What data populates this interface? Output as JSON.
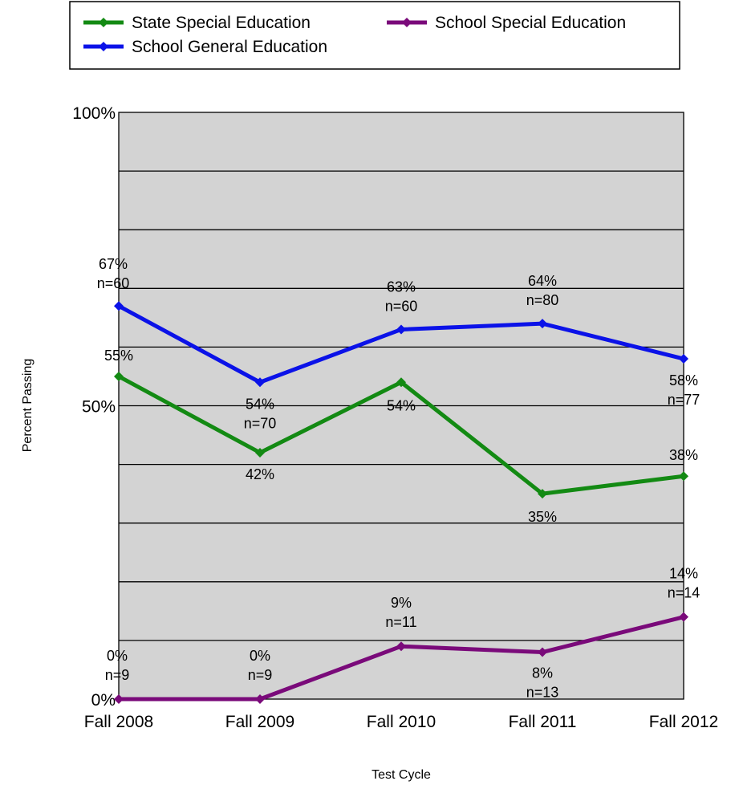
{
  "chart_data": {
    "type": "line",
    "categories": [
      "Fall 2008",
      "Fall 2009",
      "Fall 2010",
      "Fall 2011",
      "Fall 2012"
    ],
    "xlabel": "Test Cycle",
    "ylabel": "Percent Passing",
    "ylim": [
      0,
      100
    ],
    "y_ticks": [
      {
        "value": 0,
        "label": "0%"
      },
      {
        "value": 50,
        "label": "50%"
      },
      {
        "value": 100,
        "label": "100%"
      }
    ],
    "grid": true,
    "legend_position": "top",
    "series": [
      {
        "name": "State Special Education",
        "color": "#138a13",
        "values": [
          55,
          42,
          54,
          35,
          38
        ],
        "labels": [
          [
            "55%"
          ],
          [
            "42%"
          ],
          [
            "54%"
          ],
          [
            "35%"
          ],
          [
            "38%"
          ]
        ]
      },
      {
        "name": "School Special Education",
        "color": "#7a0a7a",
        "values": [
          0,
          0,
          9,
          8,
          14
        ],
        "labels": [
          [
            "0%",
            "n=9"
          ],
          [
            "0%",
            "n=9"
          ],
          [
            "9%",
            "n=11"
          ],
          [
            "8%",
            "n=13"
          ],
          [
            "14%",
            "n=14"
          ]
        ]
      },
      {
        "name": "School General Education",
        "color": "#0b12e8",
        "values": [
          67,
          54,
          63,
          64,
          58
        ],
        "labels": [
          [
            "67%",
            "n=60"
          ],
          [
            "54%",
            "n=70"
          ],
          [
            "63%",
            "n=60"
          ],
          [
            "64%",
            "n=80"
          ],
          [
            "58%",
            "n=77"
          ]
        ]
      }
    ]
  }
}
